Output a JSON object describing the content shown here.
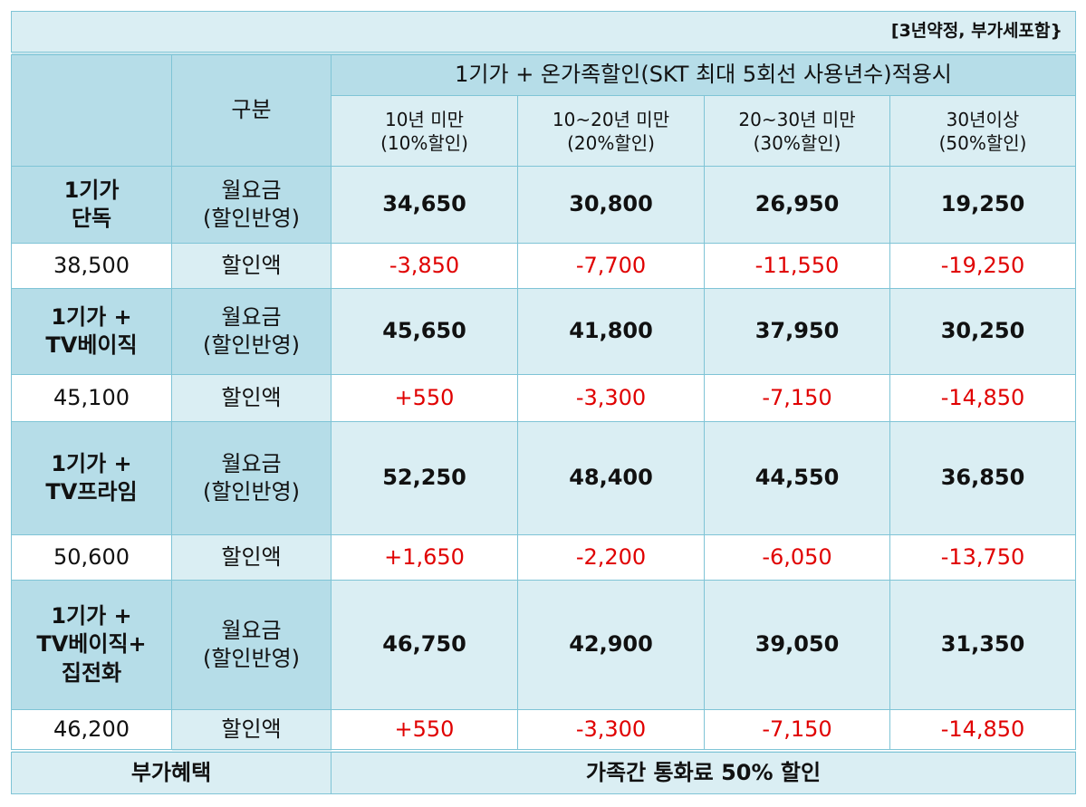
{
  "note": "[3년약정, 부가세포함}",
  "header": {
    "corner": "구분",
    "span": "1기가 + 온가족할인(SKT 최대 5회선 사용년수)적용시",
    "columns": [
      [
        "10년 미만",
        "(10%할인)"
      ],
      [
        "10~20년 미만",
        "(20%할인)"
      ],
      [
        "20~30년 미만",
        "(30%할인)"
      ],
      [
        "30년이상",
        "(50%할인)"
      ]
    ]
  },
  "rows": [
    {
      "name": [
        "1기가",
        "단독"
      ],
      "base": "38,500",
      "monthly_label": [
        "월요금",
        "(할인반영)"
      ],
      "monthly": [
        "34,650",
        "30,800",
        "26,950",
        "19,250"
      ],
      "discount_label": "할인액",
      "discount": [
        "-3,850",
        "-7,700",
        "-11,550",
        "-19,250"
      ]
    },
    {
      "name": [
        "1기가 +",
        "TV베이직"
      ],
      "base": "45,100",
      "monthly_label": [
        "월요금",
        "(할인반영)"
      ],
      "monthly": [
        "45,650",
        "41,800",
        "37,950",
        "30,250"
      ],
      "discount_label": "할인액",
      "discount": [
        "+550",
        "-3,300",
        "-7,150",
        "-14,850"
      ]
    },
    {
      "name": [
        "1기가 +",
        "TV프라임"
      ],
      "base": "50,600",
      "monthly_label": [
        "월요금",
        "(할인반영)"
      ],
      "monthly": [
        "52,250",
        "48,400",
        "44,550",
        "36,850"
      ],
      "discount_label": "할인액",
      "discount": [
        "+1,650",
        "-2,200",
        "-6,050",
        "-13,750"
      ]
    },
    {
      "name": [
        "1기가 +",
        "TV베이직+",
        "집전화"
      ],
      "base": "46,200",
      "monthly_label": [
        "월요금",
        "(할인반영)"
      ],
      "monthly": [
        "46,750",
        "42,900",
        "39,050",
        "31,350"
      ],
      "discount_label": "할인액",
      "discount": [
        "+550",
        "-3,300",
        "-7,150",
        "-14,850"
      ]
    }
  ],
  "footer": {
    "label": "부가혜택",
    "text": "가족간 통화료 50% 할인"
  }
}
